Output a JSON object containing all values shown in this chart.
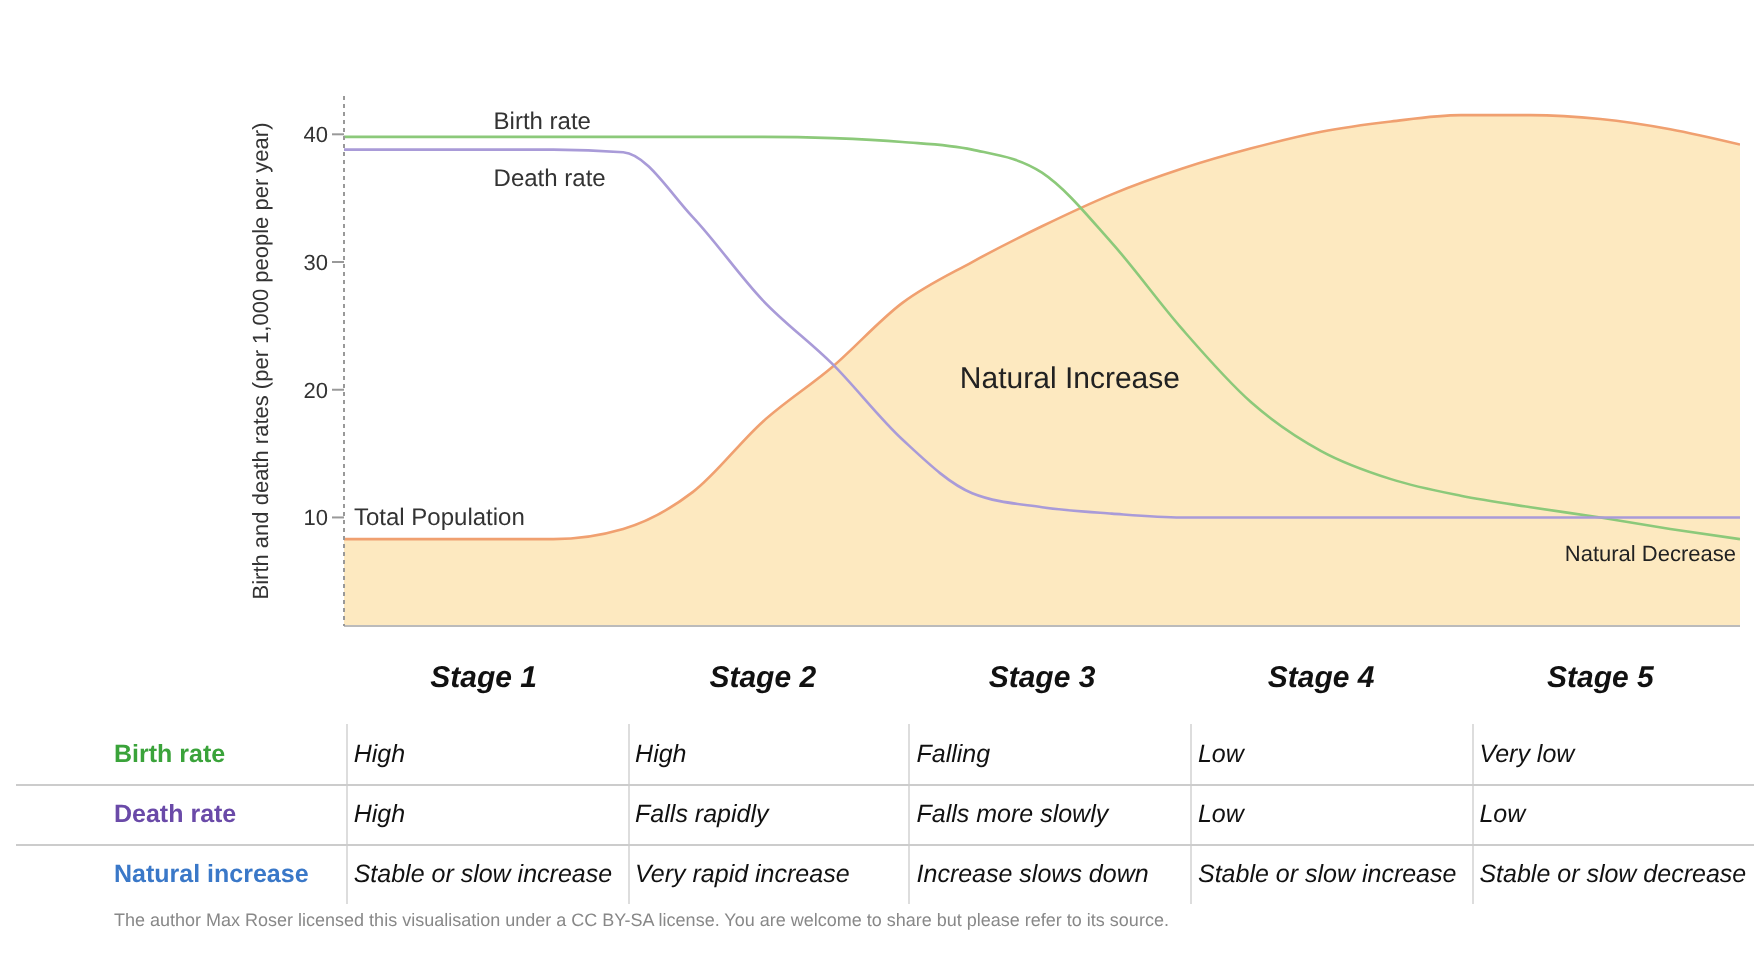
{
  "chart_data": {
    "type": "line",
    "ylabel": "Birth and death rates (per 1,000 people per year)",
    "categories": [
      null,
      null,
      "Stage 1",
      null,
      null,
      null,
      "Stage 2",
      null,
      null,
      null,
      "Stage 3",
      null,
      null,
      null,
      "Stage 4",
      null,
      null,
      null,
      "Stage 5",
      null,
      null
    ],
    "ylim": [
      1.5,
      43
    ],
    "yticks": [
      10,
      20,
      30,
      40
    ],
    "series": [
      {
        "name": "Total Population",
        "type": "area",
        "color": "#f0a070",
        "values": [
          8.3,
          8.3,
          8.3,
          8.3,
          9.1,
          12,
          17.5,
          21.8,
          26.8,
          30,
          32.8,
          35.3,
          37.3,
          38.9,
          40.2,
          41,
          41.5,
          41.5,
          41.2,
          40.4,
          39.2
        ]
      },
      {
        "name": "Birth rate",
        "color": "#8cc97a",
        "values": [
          39.8,
          39.8,
          39.8,
          39.8,
          39.8,
          39.8,
          39.8,
          39.7,
          39.4,
          38.8,
          37,
          31.5,
          24.8,
          19,
          15.2,
          13,
          11.7,
          10.8,
          10,
          9.1,
          8.3
        ]
      },
      {
        "name": "Death rate",
        "color": "#a99bd8",
        "values": [
          38.8,
          38.8,
          38.8,
          38.8,
          38.6,
          33.5,
          27,
          22,
          16.1,
          11.9,
          10.8,
          10.3,
          10,
          10,
          10,
          10,
          10,
          10,
          10,
          10,
          10
        ]
      }
    ],
    "grid": false,
    "legend": false,
    "marker": "none",
    "line_style": "solid",
    "annotations": [
      "Natural Increase",
      "Natural Decrease",
      "Birth rate",
      "High",
      "High",
      "Falling",
      "Low",
      "Very low",
      "Death rate",
      "High",
      "Falls rapidly",
      "Falls more slowly",
      "Low",
      "Low",
      "Natural increase",
      "Stable or slow increase",
      "Very rapid increase",
      "Increase slows down",
      "Stable or slow increase",
      "Stable or slow decrease",
      "The author Max Roser licensed this visualisation under a CC BY-SA license. You are welcome to share but please refer to its source."
    ]
  }
}
